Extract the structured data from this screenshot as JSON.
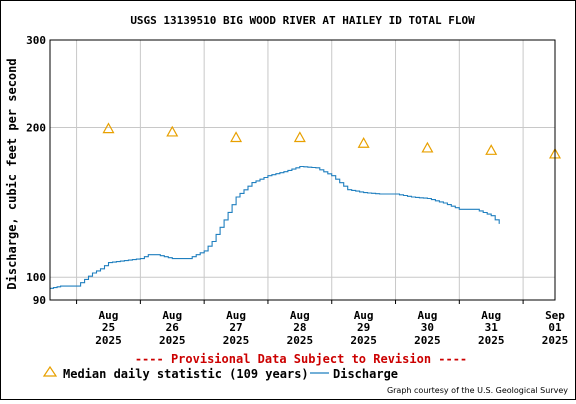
{
  "chart_data": {
    "type": "line",
    "title": "USGS 13139510 BIG WOOD RIVER AT HAILEY ID TOTAL FLOW",
    "ylabel": "Discharge, cubic feet per second",
    "xlabel": "",
    "y_scale": "log",
    "ylim": [
      90,
      300
    ],
    "y_ticks": [
      90,
      100,
      200,
      300
    ],
    "xlim": [
      "2025-08-24 14:00",
      "2025-09-01 12:00"
    ],
    "x_ticks": [
      {
        "date": "2025-08-25",
        "month": "Aug",
        "day": "25",
        "year": "2025"
      },
      {
        "date": "2025-08-26",
        "month": "Aug",
        "day": "26",
        "year": "2025"
      },
      {
        "date": "2025-08-27",
        "month": "Aug",
        "day": "27",
        "year": "2025"
      },
      {
        "date": "2025-08-28",
        "month": "Aug",
        "day": "28",
        "year": "2025"
      },
      {
        "date": "2025-08-29",
        "month": "Aug",
        "day": "29",
        "year": "2025"
      },
      {
        "date": "2025-08-30",
        "month": "Aug",
        "day": "30",
        "year": "2025"
      },
      {
        "date": "2025-08-31",
        "month": "Aug",
        "day": "31",
        "year": "2025"
      },
      {
        "date": "2025-09-01",
        "month": "Sep",
        "day": "01",
        "year": "2025"
      }
    ],
    "grid": true,
    "legend_position": "bottom",
    "series": [
      {
        "name": "Median daily statistic (109 years)",
        "type": "scatter",
        "marker": "triangle",
        "color": "#e8a000",
        "x": [
          "2025-08-25",
          "2025-08-26",
          "2025-08-27",
          "2025-08-28",
          "2025-08-29",
          "2025-08-30",
          "2025-08-31",
          "2025-09-01"
        ],
        "values": [
          199,
          196,
          191,
          191,
          186,
          182,
          180,
          177
        ]
      },
      {
        "name": "Discharge",
        "type": "line",
        "color": "#1f7fbf",
        "x": [
          "2025-08-24 14:00",
          "2025-08-24 18:00",
          "2025-08-25 00:00",
          "2025-08-25 03:00",
          "2025-08-25 06:00",
          "2025-08-25 09:00",
          "2025-08-25 12:00",
          "2025-08-25 18:00",
          "2025-08-26 00:00",
          "2025-08-26 03:00",
          "2025-08-26 06:00",
          "2025-08-26 12:00",
          "2025-08-26 18:00",
          "2025-08-27 00:00",
          "2025-08-27 03:00",
          "2025-08-27 06:00",
          "2025-08-27 09:00",
          "2025-08-27 12:00",
          "2025-08-27 18:00",
          "2025-08-28 00:00",
          "2025-08-28 06:00",
          "2025-08-28 12:00",
          "2025-08-28 18:00",
          "2025-08-29 00:00",
          "2025-08-29 06:00",
          "2025-08-29 12:00",
          "2025-08-29 18:00",
          "2025-08-30 00:00",
          "2025-08-30 06:00",
          "2025-08-30 12:00",
          "2025-08-30 18:00",
          "2025-08-31 00:00",
          "2025-08-31 06:00",
          "2025-08-31 12:00",
          "2025-08-31 15:00"
        ],
        "values": [
          95,
          96,
          96,
          99,
          102,
          104,
          107,
          108,
          109,
          111,
          111,
          109,
          109,
          113,
          118,
          126,
          135,
          145,
          155,
          160,
          163,
          167,
          166,
          160,
          150,
          148,
          147,
          147,
          145,
          144,
          141,
          137,
          137,
          133,
          128
        ]
      }
    ]
  },
  "provisional_note": "---- Provisional Data Subject to Revision ----",
  "provisional_color": "#cc0000",
  "credit": "Graph courtesy of the U.S. Geological Survey"
}
